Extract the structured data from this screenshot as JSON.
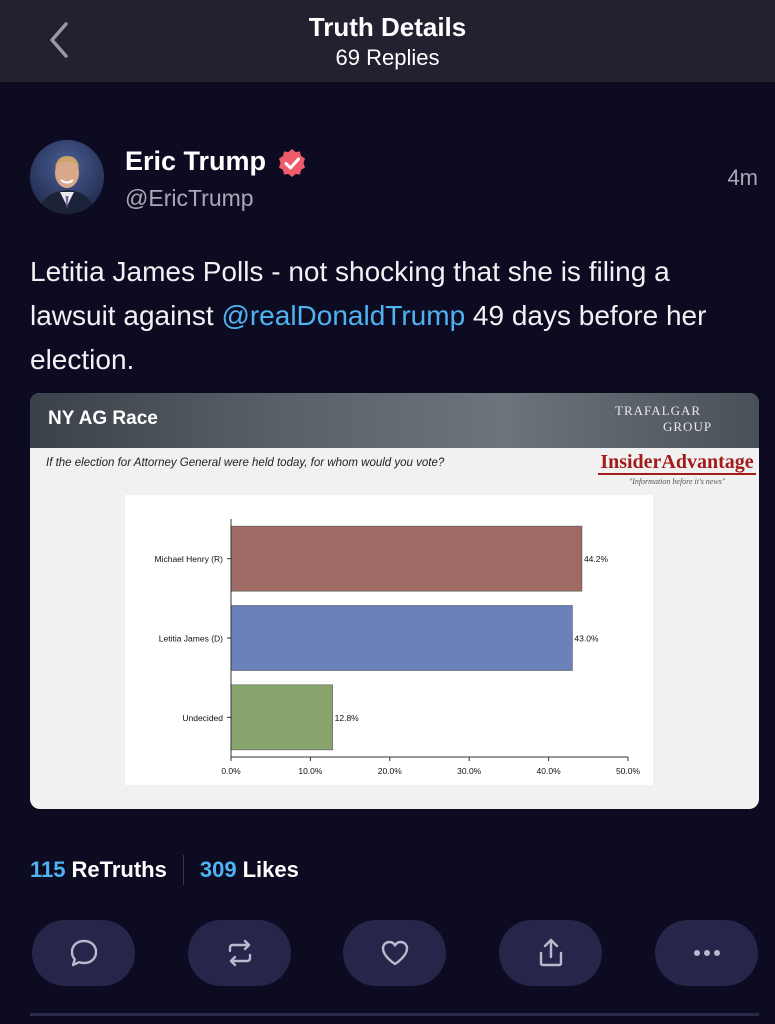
{
  "header": {
    "title": "Truth Details",
    "replies": "69 Replies"
  },
  "post": {
    "author": {
      "name": "Eric Trump",
      "handle": "@EricTrump",
      "verified_color": "#ef5b6a"
    },
    "time": "4m",
    "text_before": "Letitia James Polls - not shocking that she is filing a lawsuit against ",
    "mention": "@realDonaldTrump",
    "text_after": " 49 days before her election."
  },
  "media": {
    "banner_title": "NY AG Race",
    "logo_trafalgar_line1": "TRAFALGAR",
    "logo_trafalgar_line2": "GROUP",
    "question": "If the election for Attorney General were held today, for whom would you vote?",
    "logo_insider": "InsiderAdvantage",
    "logo_insider_tag": "\"Information before it's news\""
  },
  "chart_data": {
    "type": "bar",
    "orientation": "horizontal",
    "categories": [
      "Michael Henry (R)",
      "Letitia James (D)",
      "Undecided"
    ],
    "values": [
      44.2,
      43.0,
      12.8
    ],
    "value_labels": [
      "44.2%",
      "43.0%",
      "12.8%"
    ],
    "colors": [
      "#9e6a63",
      "#6a82b9",
      "#87a56d"
    ],
    "x_ticks": [
      "0.0%",
      "10.0%",
      "20.0%",
      "30.0%",
      "40.0%",
      "50.0%"
    ],
    "xlim": [
      0,
      50
    ],
    "grid": false
  },
  "stats": {
    "retruths_count": "115",
    "retruths_label": "ReTruths",
    "likes_count": "309",
    "likes_label": "Likes"
  },
  "actions": {
    "icons": [
      "reply-icon",
      "retruth-icon",
      "like-icon",
      "share-icon",
      "more-icon"
    ]
  }
}
